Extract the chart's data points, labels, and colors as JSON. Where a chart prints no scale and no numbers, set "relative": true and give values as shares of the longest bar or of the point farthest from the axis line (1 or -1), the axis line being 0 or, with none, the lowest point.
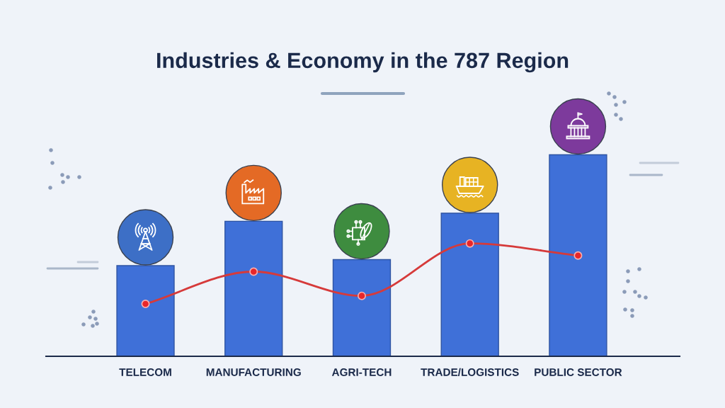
{
  "chart_data": {
    "type": "bar",
    "title": "Industries & Economy in the 787 Region",
    "categories": [
      "TELECOM",
      "MANUFACTURING",
      "AGRI-TECH",
      "TRADE/LOGISTICS",
      "PUBLIC SECTOR"
    ],
    "relative": true,
    "tick_labels": "x",
    "marker": "circle",
    "series": [
      {
        "color": "#3f70d8",
        "values": [
          0.45,
          0.67,
          0.48,
          0.71,
          1.0
        ]
      },
      {
        "type": "line",
        "color": "#d63a3a",
        "values": [
          0.26,
          0.42,
          0.3,
          0.56,
          0.5
        ]
      }
    ]
  }
}
